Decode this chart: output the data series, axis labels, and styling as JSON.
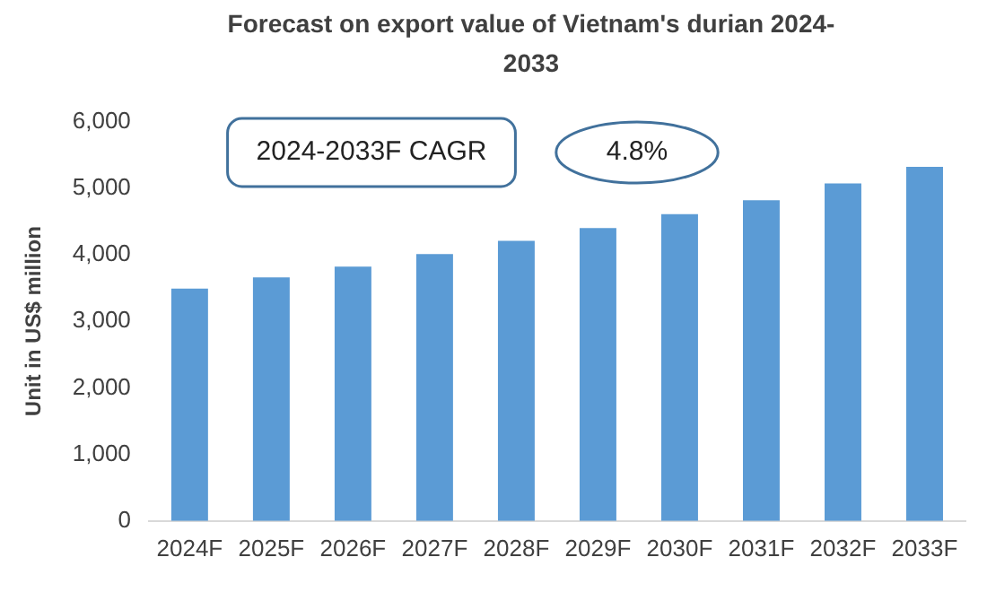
{
  "chart_data": {
    "type": "bar",
    "title": "Forecast on export value of Vietnam's durian 2024-2033",
    "ylabel": "Unit in US$ million",
    "categories": [
      "2024F",
      "2025F",
      "2026F",
      "2027F",
      "2028F",
      "2029F",
      "2030F",
      "2031F",
      "2032F",
      "2033F"
    ],
    "values": [
      3490,
      3660,
      3820,
      4010,
      4210,
      4400,
      4610,
      4820,
      5070,
      5320
    ],
    "color": "#5b9bd5",
    "ylim": [
      0,
      6000
    ],
    "yticks": [
      0,
      {
        "value": 1000,
        "label": "1,000"
      },
      {
        "value": 2000,
        "label": "2,000"
      },
      {
        "value": 3000,
        "label": "3,000"
      },
      {
        "value": 4000,
        "label": "4,000"
      },
      {
        "value": 5000,
        "label": "5,000"
      },
      {
        "value": 6000,
        "label": "6,000"
      }
    ],
    "grid": false,
    "legend": false,
    "annotations": [
      "2024-2033F CAGR",
      "4.8%"
    ]
  }
}
